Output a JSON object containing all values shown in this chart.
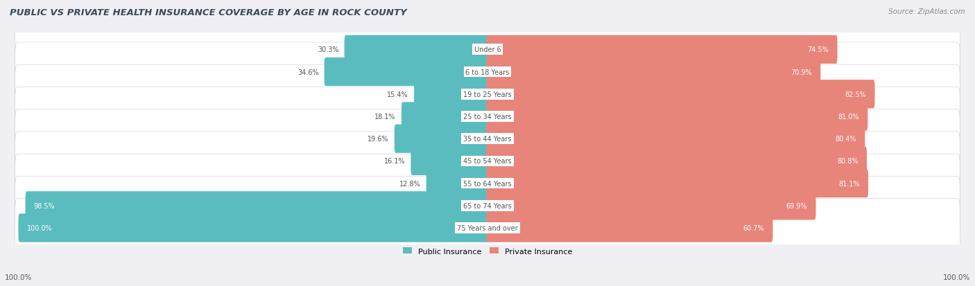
{
  "title": "PUBLIC VS PRIVATE HEALTH INSURANCE COVERAGE BY AGE IN ROCK COUNTY",
  "source": "Source: ZipAtlas.com",
  "categories": [
    "Under 6",
    "6 to 18 Years",
    "19 to 25 Years",
    "25 to 34 Years",
    "35 to 44 Years",
    "45 to 54 Years",
    "55 to 64 Years",
    "65 to 74 Years",
    "75 Years and over"
  ],
  "public_values": [
    30.3,
    34.6,
    15.4,
    18.1,
    19.6,
    16.1,
    12.8,
    98.5,
    100.0
  ],
  "private_values": [
    74.5,
    70.9,
    82.5,
    81.0,
    80.4,
    80.8,
    81.1,
    69.9,
    60.7
  ],
  "public_color": "#5bbcbf",
  "private_color": "#e8857a",
  "bg_color": "#f0eff4",
  "title_color": "#3a4a5a",
  "label_color_dark": "#555555",
  "label_color_white": "#ffffff",
  "max_value": 100.0,
  "figsize": [
    14.06,
    4.14
  ],
  "dpi": 100
}
